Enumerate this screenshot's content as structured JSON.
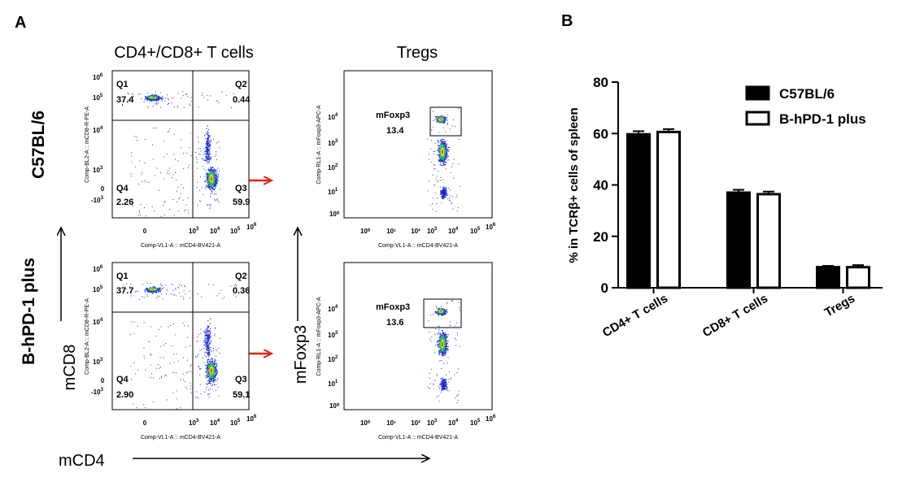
{
  "panel_a": {
    "letter": "A",
    "col_titles": [
      "CD4+/CD8+ T cells",
      "Tregs"
    ],
    "row_titles": [
      "C57BL/6",
      "B-hPD-1 plus"
    ],
    "axis_mcd8": "mCD8",
    "axis_mfoxp3": "mFoxp3",
    "axis_mcd4": "mCD4",
    "dot_plots": [
      {
        "row": "C57BL/6",
        "x_label": "Comp-VL1-A :: mCD4-BV421-A",
        "y_label": "Comp-BL2-A :: mCD8-R-PE-A",
        "quadrants": [
          {
            "name": "Q1",
            "value": "37.4"
          },
          {
            "name": "Q2",
            "value": "0.44"
          },
          {
            "name": "Q4",
            "value": "2.26"
          },
          {
            "name": "Q3",
            "value": "59.9"
          }
        ]
      },
      {
        "row": "B-hPD-1 plus",
        "x_label": "Comp-VL1-A :: mCD4-BV421-A",
        "y_label": "Comp-BL2-A :: mCD8-R-PE-A",
        "quadrants": [
          {
            "name": "Q1",
            "value": "37.7"
          },
          {
            "name": "Q2",
            "value": "0.36"
          },
          {
            "name": "Q4",
            "value": "2.90"
          },
          {
            "name": "Q3",
            "value": "59.1"
          }
        ]
      }
    ],
    "treg_plots": [
      {
        "row": "C57BL/6",
        "x_label": "Comp-VL1-A :: mCD4-BV421-A",
        "y_label": "Comp-RL1-A :: mFoxp3-APC-A",
        "gate_name": "mFoxp3",
        "gate_value": "13.4"
      },
      {
        "row": "B-hPD-1 plus",
        "x_label": "Comp-VL1-A :: mCD4-BV421-A",
        "y_label": "Comp-RL1-A :: mFoxp3-APC-A",
        "gate_name": "mFoxp3",
        "gate_value": "13.6"
      }
    ],
    "tick_labels": [
      "0",
      "-10",
      "10",
      "10",
      "10",
      "10",
      "10"
    ],
    "tick_exponents": [
      "",
      "3",
      "4",
      "5",
      "6"
    ],
    "colors": {
      "arrow": "#e8221b",
      "dots": "#1a2bd6",
      "core_green": "#2bd84a",
      "core_yellow": "#f2e22a",
      "core_red": "#e83a1a"
    }
  },
  "panel_b": {
    "letter": "B"
  },
  "chart_data": {
    "type": "bar",
    "categories": [
      "CD4+ T cells",
      "CD8+ T cells",
      "Tregs"
    ],
    "series": [
      {
        "name": "C57BL/6",
        "values": [
          59.7,
          37.0,
          8.0
        ],
        "errors": [
          1.2,
          1.1,
          0.5
        ],
        "fill": "#000000"
      },
      {
        "name": "B-hPD-1 plus",
        "values": [
          60.6,
          36.4,
          8.0
        ],
        "errors": [
          1.1,
          1.0,
          0.8
        ],
        "fill": "#ffffff"
      }
    ],
    "title": "",
    "xlabel": "",
    "ylabel": "% in TCRβ+ cells of spleen",
    "ylim": [
      0,
      80
    ],
    "yticks": [
      "0",
      "20",
      "40",
      "60",
      "80"
    ],
    "grid": false,
    "legend": "top-right"
  }
}
